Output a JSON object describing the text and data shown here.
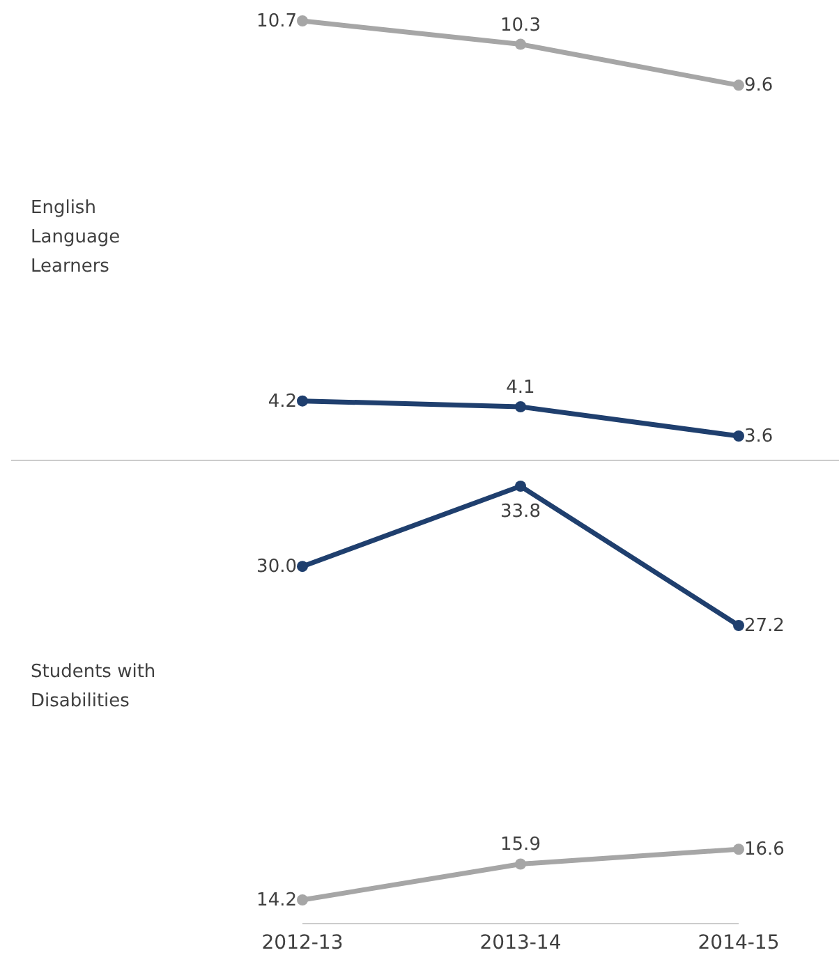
{
  "chart_data": [
    {
      "type": "line",
      "ylabel": "English Language Learners",
      "categories": [
        "2012-13",
        "2013-14",
        "2014-15"
      ],
      "series": [
        {
          "color": "#a6a6a6",
          "values": [
            10.7,
            10.3,
            9.6
          ],
          "value_labels": [
            "10.7",
            "10.3",
            "9.6"
          ]
        },
        {
          "color": "#1f3f6e",
          "values": [
            4.2,
            4.1,
            3.6
          ],
          "value_labels": [
            "4.2",
            "4.1",
            "3.6"
          ]
        }
      ],
      "marker": "circle",
      "grid": false,
      "legend": false,
      "tick_labels": false
    },
    {
      "type": "line",
      "ylabel": "Students with Disabilities",
      "categories": [
        "2012-13",
        "2013-14",
        "2014-15"
      ],
      "series": [
        {
          "color": "#1f3f6e",
          "values": [
            30.0,
            33.8,
            27.2
          ],
          "value_labels": [
            "30.0",
            "33.8",
            "27.2"
          ]
        },
        {
          "color": "#a6a6a6",
          "values": [
            14.2,
            15.9,
            16.6
          ],
          "value_labels": [
            "14.2",
            "15.9",
            "16.6"
          ]
        }
      ],
      "marker": "circle",
      "grid": false,
      "legend": false,
      "tick_labels": "x"
    }
  ]
}
